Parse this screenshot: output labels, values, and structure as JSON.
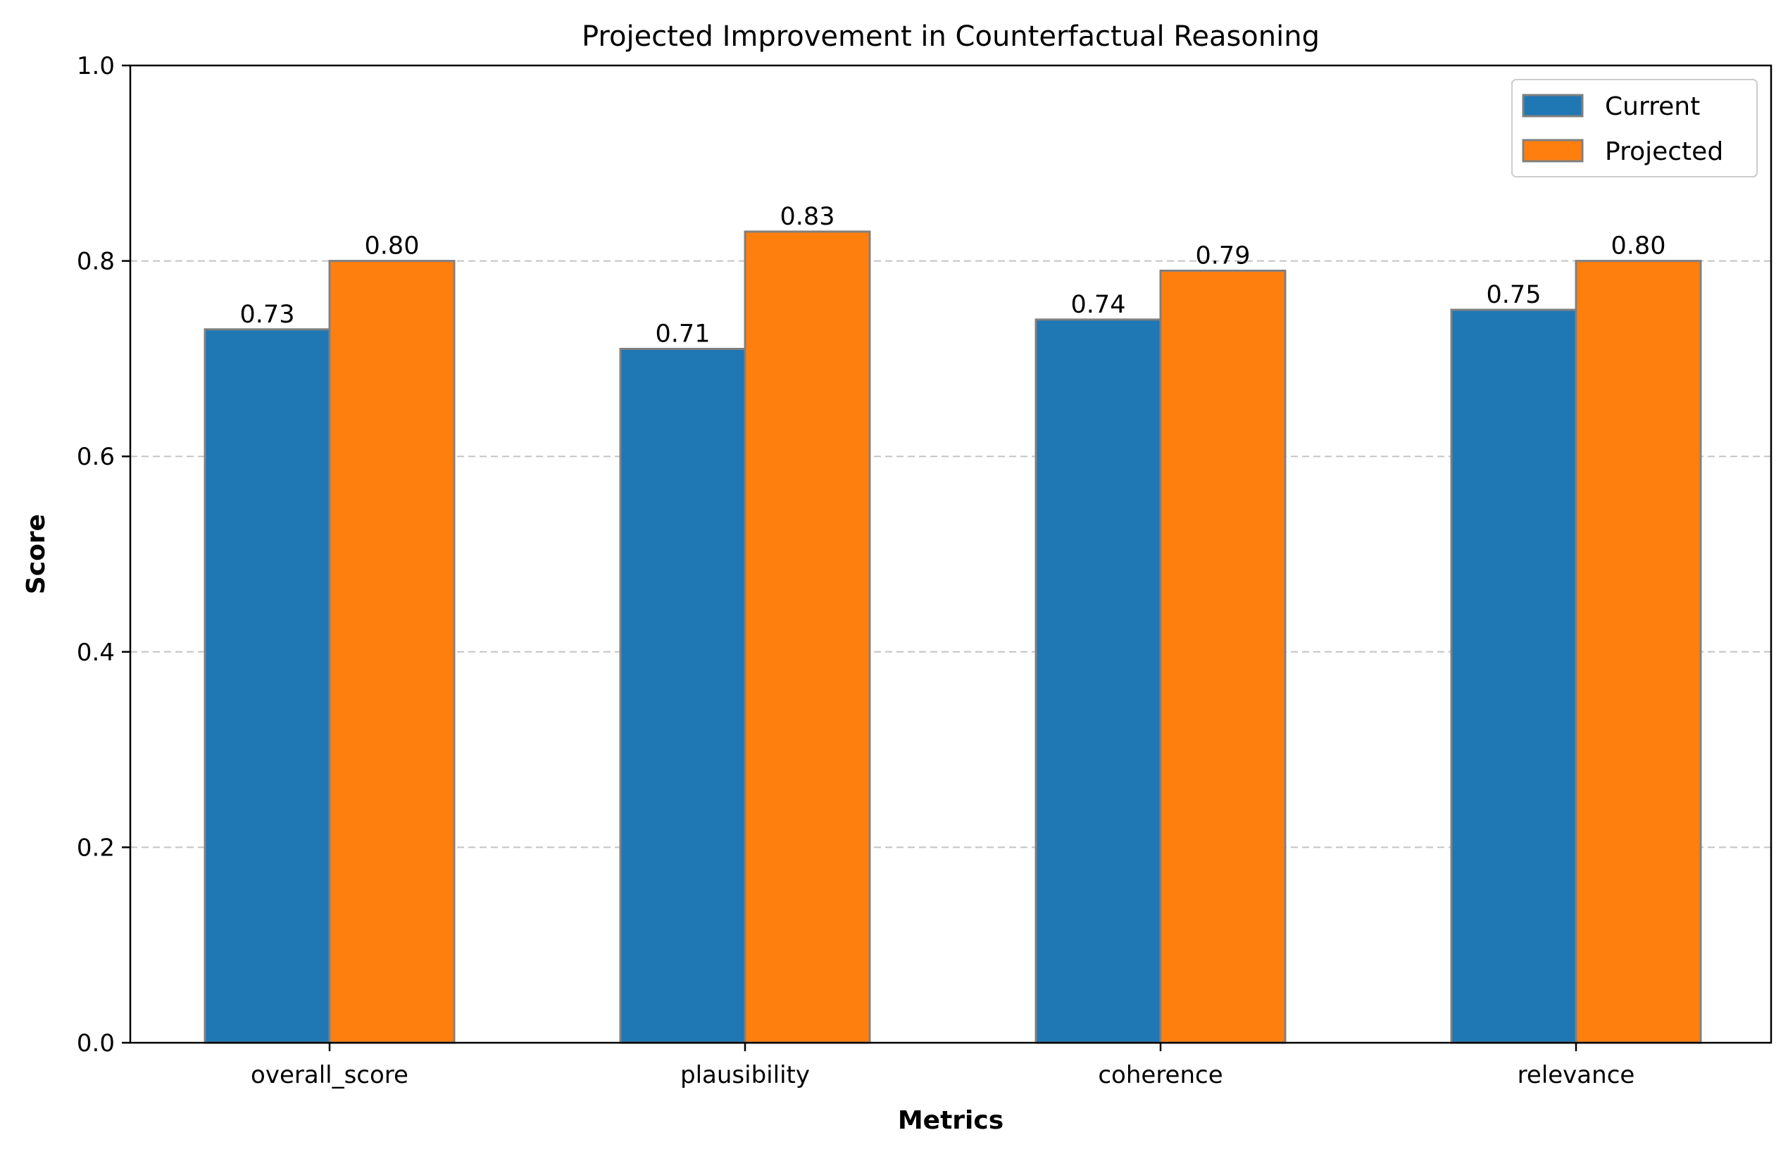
{
  "chart_data": {
    "type": "bar",
    "title": "Projected Improvement in Counterfactual Reasoning",
    "xlabel": "Metrics",
    "ylabel": "Score",
    "categories": [
      "overall_score",
      "plausibility",
      "coherence",
      "relevance"
    ],
    "series": [
      {
        "name": "Current",
        "values": [
          0.73,
          0.71,
          0.74,
          0.75
        ],
        "color": "#1f77b4"
      },
      {
        "name": "Projected",
        "values": [
          0.8,
          0.83,
          0.79,
          0.8
        ],
        "color": "#ff7f0e"
      }
    ],
    "value_labels": [
      [
        "0.73",
        "0.71",
        "0.74",
        "0.75"
      ],
      [
        "0.80",
        "0.83",
        "0.79",
        "0.80"
      ]
    ],
    "ylim": [
      0,
      1.0
    ],
    "yticks": [
      0.0,
      0.2,
      0.4,
      0.6,
      0.8,
      1.0
    ],
    "ytick_labels": [
      "0.0",
      "0.2",
      "0.4",
      "0.6",
      "0.8",
      "1.0"
    ],
    "grid": {
      "axis": "y",
      "style": "dashed",
      "color": "#c4c4c4"
    },
    "legend": {
      "placement": "top-right"
    },
    "bar_edge_color": "#808080"
  }
}
